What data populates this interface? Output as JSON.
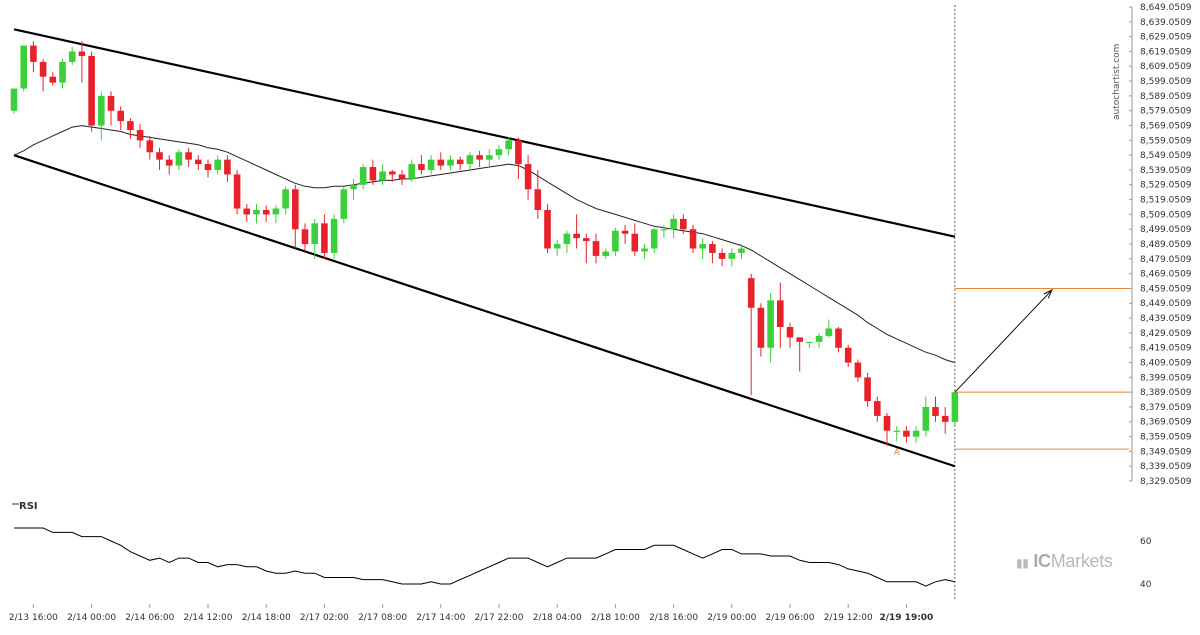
{
  "brand": {
    "side_text": "autochartist.com",
    "watermark_prefix": "IC",
    "watermark_suffix": "Markets"
  },
  "rsi_label": "RSI",
  "pattern_point_label": "A",
  "colors": {
    "up": "#3ccf3c",
    "down": "#e8222a",
    "ma": "#222222",
    "level": "#e8872f",
    "channel": "#000000"
  },
  "chart_data": [
    {
      "type": "candlestick",
      "y_ticks": [
        "8,649.0509",
        "8,639.0509",
        "8,629.0509",
        "8,619.0509",
        "8,609.0509",
        "8,599.0509",
        "8,589.0509",
        "8,579.0509",
        "8,569.0509",
        "8,559.0509",
        "8,549.0509",
        "8,539.0509",
        "8,529.0509",
        "8,519.0509",
        "8,509.0509",
        "8,499.0509",
        "8,489.0509",
        "8,479.0509",
        "8,469.0509",
        "8,459.0509",
        "8,449.0509",
        "8,439.0509",
        "8,429.0509",
        "8,419.0509",
        "8,409.0509",
        "8,399.0509",
        "8,389.0509",
        "8,379.0509",
        "8,369.0509",
        "8,359.0509",
        "8,349.0509",
        "8,339.0509",
        "8,329.0509"
      ],
      "x_ticks": [
        "2/13 16:00",
        "2/14 00:00",
        "2/14 06:00",
        "2/14 12:00",
        "2/14 18:00",
        "2/17 02:00",
        "2/17 08:00",
        "2/17 14:00",
        "2/17 22:00",
        "2/18 04:00",
        "2/18 10:00",
        "2/18 16:00",
        "2/19 00:00",
        "2/19 06:00",
        "2/19 12:00",
        "2/19 19:00"
      ],
      "ylim": [
        8329.05,
        8649.05
      ],
      "candles": [
        [
          8579,
          8594,
          8577,
          8594
        ],
        [
          8594,
          8623,
          8592,
          8623
        ],
        [
          8623,
          8612,
          8605,
          8626
        ],
        [
          8612,
          8602,
          8592,
          8614
        ],
        [
          8602,
          8598,
          8596,
          8605
        ],
        [
          8598,
          8612,
          8594,
          8614
        ],
        [
          8612,
          8619,
          8610,
          8622
        ],
        [
          8619,
          8616,
          8598,
          8626
        ],
        [
          8616,
          8569,
          8565,
          8619
        ],
        [
          8569,
          8589,
          8559,
          8592
        ],
        [
          8589,
          8579,
          8569,
          8592
        ],
        [
          8579,
          8572,
          8566,
          8582
        ],
        [
          8572,
          8566,
          8560,
          8574
        ],
        [
          8566,
          8559,
          8554,
          8570
        ],
        [
          8559,
          8551,
          8546,
          8562
        ],
        [
          8551,
          8546,
          8539,
          8554
        ],
        [
          8546,
          8542,
          8536,
          8549
        ],
        [
          8542,
          8551,
          8539,
          8553
        ],
        [
          8551,
          8546,
          8541,
          8554
        ],
        [
          8546,
          8543,
          8539,
          8549
        ],
        [
          8543,
          8539,
          8534,
          8546
        ],
        [
          8539,
          8546,
          8536,
          8549
        ],
        [
          8546,
          8536,
          8531,
          8549
        ],
        [
          8536,
          8513,
          8509,
          8539
        ],
        [
          8513,
          8509,
          8504,
          8516
        ],
        [
          8509,
          8512,
          8503,
          8516
        ],
        [
          8512,
          8509,
          8504,
          8515
        ],
        [
          8509,
          8513,
          8503,
          8515
        ],
        [
          8513,
          8526,
          8509,
          8528
        ],
        [
          8526,
          8499,
          8486,
          8529
        ],
        [
          8499,
          8489,
          8484,
          8503
        ],
        [
          8489,
          8503,
          8479,
          8506
        ],
        [
          8503,
          8483,
          8479,
          8509
        ],
        [
          8483,
          8506,
          8479,
          8509
        ],
        [
          8506,
          8526,
          8503,
          8528
        ],
        [
          8526,
          8529,
          8519,
          8533
        ],
        [
          8529,
          8541,
          8526,
          8543
        ],
        [
          8541,
          8532,
          8529,
          8546
        ],
        [
          8532,
          8538,
          8529,
          8543
        ],
        [
          8538,
          8536,
          8531,
          8539
        ],
        [
          8536,
          8533,
          8529,
          8539
        ],
        [
          8533,
          8543,
          8531,
          8546
        ],
        [
          8543,
          8539,
          8536,
          8549
        ],
        [
          8539,
          8546,
          8536,
          8549
        ],
        [
          8546,
          8542,
          8539,
          8551
        ],
        [
          8542,
          8546,
          8539,
          8549
        ],
        [
          8546,
          8543,
          8539,
          8548
        ],
        [
          8543,
          8549,
          8539,
          8551
        ],
        [
          8549,
          8546,
          8541,
          8552
        ],
        [
          8546,
          8549,
          8541,
          8553
        ],
        [
          8549,
          8553,
          8546,
          8556
        ],
        [
          8553,
          8559,
          8549,
          8561
        ],
        [
          8559,
          8543,
          8533,
          8561
        ],
        [
          8543,
          8526,
          8519,
          8549
        ],
        [
          8526,
          8512,
          8506,
          8539
        ],
        [
          8512,
          8486,
          8483,
          8516
        ],
        [
          8486,
          8489,
          8481,
          8492
        ],
        [
          8489,
          8496,
          8483,
          8498
        ],
        [
          8496,
          8493,
          8486,
          8509
        ],
        [
          8493,
          8491,
          8476,
          8496
        ],
        [
          8491,
          8481,
          8476,
          8496
        ],
        [
          8481,
          8484,
          8479,
          8486
        ],
        [
          8484,
          8498,
          8481,
          8500
        ],
        [
          8498,
          8496,
          8489,
          8502
        ],
        [
          8496,
          8484,
          8481,
          8503
        ],
        [
          8484,
          8486,
          8479,
          8489
        ],
        [
          8486,
          8499,
          8483,
          8500
        ],
        [
          8499,
          8499,
          8493,
          8502
        ],
        [
          8499,
          8506,
          8493,
          8509
        ],
        [
          8506,
          8499,
          8496,
          8509
        ],
        [
          8499,
          8486,
          8483,
          8502
        ],
        [
          8486,
          8489,
          8479,
          8493
        ],
        [
          8489,
          8483,
          8476,
          8491
        ],
        [
          8483,
          8479,
          8474,
          8486
        ],
        [
          8479,
          8483,
          8474,
          8486
        ],
        [
          8483,
          8486,
          8479,
          8489
        ],
        [
          8466,
          8446,
          8387,
          8469
        ],
        [
          8446,
          8419,
          8413,
          8449
        ],
        [
          8419,
          8451,
          8409,
          8456
        ],
        [
          8451,
          8433,
          8419,
          8463
        ],
        [
          8433,
          8426,
          8419,
          8436
        ],
        [
          8426,
          8423,
          8403,
          8426
        ],
        [
          8423,
          8423,
          8419,
          8423
        ],
        [
          8423,
          8427,
          8419,
          8429
        ],
        [
          8427,
          8432,
          8426,
          8438
        ],
        [
          8432,
          8419,
          8416,
          8433
        ],
        [
          8419,
          8409,
          8406,
          8421
        ],
        [
          8409,
          8399,
          8396,
          8411
        ],
        [
          8399,
          8383,
          8379,
          8402
        ],
        [
          8383,
          8373,
          8369,
          8386
        ],
        [
          8373,
          8363,
          8353,
          8375
        ],
        [
          8363,
          8363,
          8356,
          8366
        ],
        [
          8363,
          8359,
          8355,
          8366
        ],
        [
          8359,
          8363,
          8355,
          8366
        ],
        [
          8363,
          8379,
          8359,
          8386
        ],
        [
          8379,
          8373,
          8369,
          8386
        ],
        [
          8373,
          8369,
          8361,
          8379
        ],
        [
          8369,
          8389,
          8366,
          8391
        ]
      ],
      "series": [
        {
          "ma": [
            8549,
            8552,
            8556,
            8559,
            8562,
            8565,
            8568,
            8569,
            8568,
            8567,
            8566,
            8565,
            8563,
            8562,
            8561,
            8560,
            8559,
            8558,
            8557,
            8556,
            8554,
            8553,
            8551,
            8548,
            8545,
            8542,
            8539,
            8536,
            8533,
            8530,
            8528,
            8527,
            8527,
            8528,
            8528,
            8529,
            8530,
            8531,
            8532,
            8532,
            8533,
            8533,
            8534,
            8535,
            8536,
            8537,
            8538,
            8539,
            8540,
            8541,
            8542,
            8543,
            8542,
            8539,
            8535,
            8531,
            8527,
            8523,
            8519,
            8516,
            8513,
            8511,
            8509,
            8507,
            8505,
            8503,
            8501,
            8500,
            8499,
            8498,
            8497,
            8496,
            8494,
            8492,
            8490,
            8488,
            8485,
            8481,
            8477,
            8473,
            8469,
            8465,
            8461,
            8457,
            8453,
            8449,
            8445,
            8441,
            8436,
            8432,
            8428,
            8425,
            8422,
            8419,
            8416,
            8414,
            8411,
            8409
          ]
        }
      ],
      "channel": {
        "upper": [
          [
            0,
            8634
          ],
          [
            97,
            8494
          ]
        ],
        "lower": [
          [
            0,
            8549
          ],
          [
            97,
            8339
          ]
        ]
      },
      "levels": [
        8459.05,
        8389.05,
        8350.55
      ],
      "projection": {
        "from": [
          97,
          8389
        ],
        "to": [
          107,
          8458
        ]
      },
      "pattern_point_index": 91
    },
    {
      "type": "line",
      "name": "RSI",
      "y_ticks": [
        "60",
        "40"
      ],
      "ylim": [
        33,
        73
      ],
      "values": [
        66,
        66,
        66,
        66,
        64,
        64,
        64,
        62,
        62,
        62,
        60,
        58,
        55,
        53,
        51,
        52,
        50,
        52,
        52,
        50,
        50,
        48,
        49,
        49,
        48,
        48,
        46,
        45,
        45,
        46,
        45,
        45,
        43,
        43,
        43,
        43,
        42,
        42,
        42,
        41,
        40,
        40,
        40,
        41,
        40,
        40,
        42,
        44,
        46,
        48,
        50,
        52,
        52,
        52,
        50,
        48,
        50,
        52,
        52,
        52,
        52,
        54,
        56,
        56,
        56,
        56,
        58,
        58,
        58,
        56,
        54,
        52,
        54,
        56,
        56,
        54,
        54,
        54,
        53,
        53,
        53,
        51,
        50,
        50,
        50,
        49,
        47,
        46,
        45,
        43,
        41,
        41,
        41,
        41,
        39,
        41,
        42,
        41
      ]
    }
  ]
}
